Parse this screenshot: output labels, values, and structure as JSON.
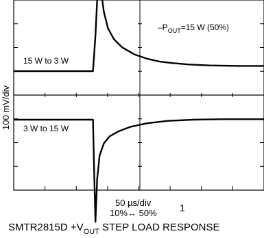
{
  "chart_data": {
    "type": "line",
    "title": "SMTR2815D +V",
    "title_sub": "OUT",
    "title_rest": " STEP LOAD RESPONSE",
    "ylabel": "100 mV/div",
    "xlabel": "50 µs/div",
    "annotation": {
      "prefix": "–P",
      "sub": "OUT",
      "rest": "=15 W (50%)"
    },
    "xnote": "10%↔ 50%",
    "figure_number": "1",
    "x_divisions": 8,
    "y_divisions": 8,
    "grid": "center-cross with tick marks",
    "x_units": "µs",
    "y_units": "mV",
    "panels": [
      {
        "name": "upper",
        "label": "15 W to 3 W",
        "baseline_mv": 0,
        "points": [
          [
            0,
            0
          ],
          [
            190,
            0
          ],
          [
            196,
            150
          ],
          [
            202,
            370
          ],
          [
            206,
            490
          ],
          [
            210,
            330
          ],
          [
            216,
            250
          ],
          [
            226,
            180
          ],
          [
            240,
            135
          ],
          [
            260,
            100
          ],
          [
            290,
            70
          ],
          [
            320,
            52
          ],
          [
            350,
            40
          ],
          [
            380,
            34
          ],
          [
            420,
            28
          ],
          [
            470,
            24
          ],
          [
            540,
            22
          ],
          [
            600,
            22
          ]
        ]
      },
      {
        "name": "lower",
        "label": "3 W to 15 W",
        "baseline_mv": 0,
        "points": [
          [
            0,
            0
          ],
          [
            190,
            0
          ],
          [
            193,
            -230
          ],
          [
            196,
            -430
          ],
          [
            200,
            -250
          ],
          [
            206,
            -150
          ],
          [
            216,
            -100
          ],
          [
            230,
            -70
          ],
          [
            250,
            -50
          ],
          [
            280,
            -30
          ],
          [
            320,
            -15
          ],
          [
            370,
            -5
          ],
          [
            430,
            0
          ],
          [
            500,
            2
          ],
          [
            600,
            2
          ]
        ]
      }
    ]
  }
}
